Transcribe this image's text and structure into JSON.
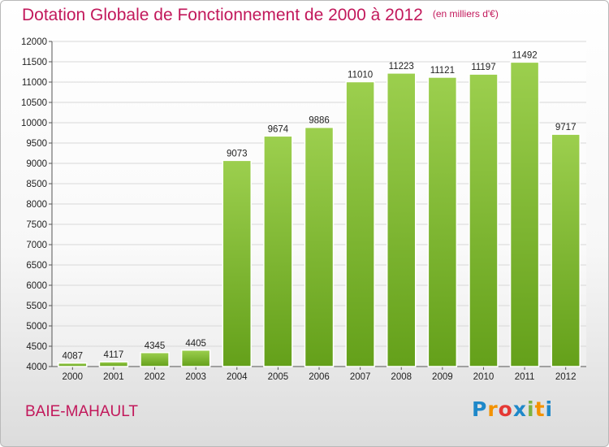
{
  "title": "Dotation Globale de Fonctionnement de 2000 à 2012",
  "subtitle": "(en milliers d'€)",
  "place": "BAIE-MAHAULT",
  "logo": {
    "text": "Proxiti"
  },
  "colors": {
    "title": "#c2185b",
    "bar_top": "#9ccf4e",
    "bar_bottom": "#64a01a",
    "grid": "#d8d8d8"
  },
  "chart_data": {
    "type": "bar",
    "categories": [
      "2000",
      "2001",
      "2002",
      "2003",
      "2004",
      "2005",
      "2006",
      "2007",
      "2008",
      "2009",
      "2010",
      "2011",
      "2012"
    ],
    "values": [
      4087,
      4117,
      4345,
      4405,
      9073,
      9674,
      9886,
      11010,
      11223,
      11121,
      11197,
      11492,
      9717
    ],
    "ylim": [
      4000,
      12000
    ],
    "yticks": [
      4000,
      4500,
      5000,
      5500,
      6000,
      6500,
      7000,
      7500,
      8000,
      8500,
      9000,
      9500,
      10000,
      10500,
      11000,
      11500,
      12000
    ],
    "grid": true
  }
}
